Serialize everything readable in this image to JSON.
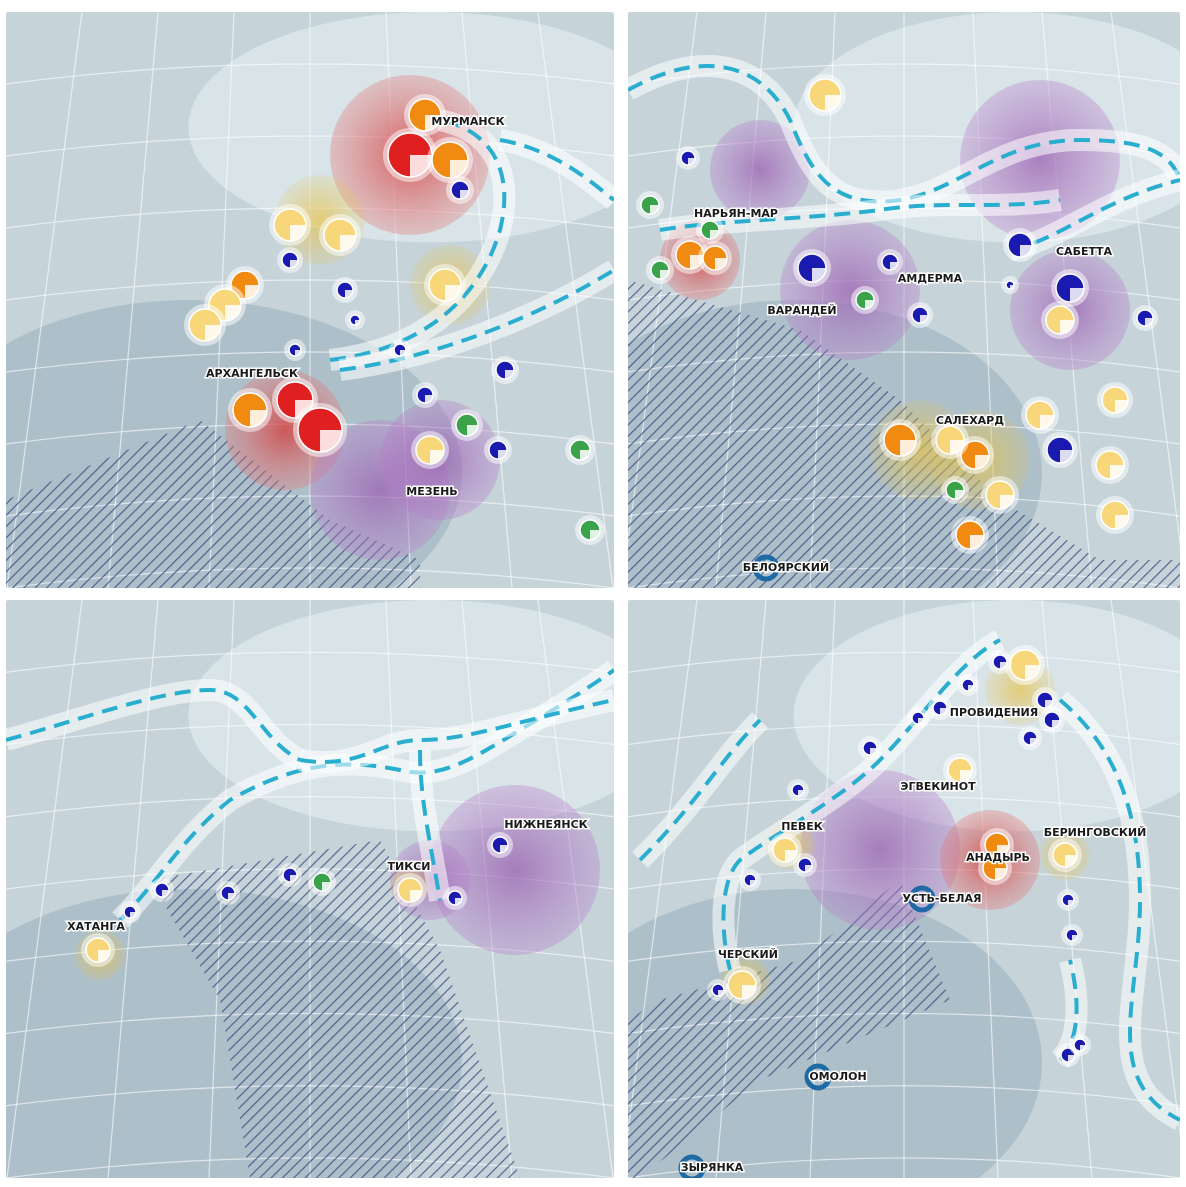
{
  "panels": [
    {
      "cities": [
        "МУРМАНСК",
        "АРХАНГЕЛЬСК",
        "МЕЗЕНЬ"
      ]
    },
    {
      "cities": [
        "НАРЬЯН-МАР",
        "АМДЕРМА",
        "ВАРАНДЕЙ",
        "САБЕТТА",
        "САЛЕХАРД",
        "БЕЛОЯРСКИЙ"
      ]
    },
    {
      "cities": [
        "ХАТАНГА",
        "ТИКСИ",
        "НИЖНЕЯНСК"
      ]
    },
    {
      "cities": [
        "ПРОВИДЕНИЯ",
        "ЭГВЕКИНОТ",
        "ПЕВЕК",
        "БЕРИНГОВСКИЙ",
        "АНАДЫРЬ",
        "УСТЬ-БЕЛАЯ",
        "ЧЕРСКИЙ",
        "ОМОЛОН",
        "ЗЫРЯНКА"
      ]
    }
  ]
}
